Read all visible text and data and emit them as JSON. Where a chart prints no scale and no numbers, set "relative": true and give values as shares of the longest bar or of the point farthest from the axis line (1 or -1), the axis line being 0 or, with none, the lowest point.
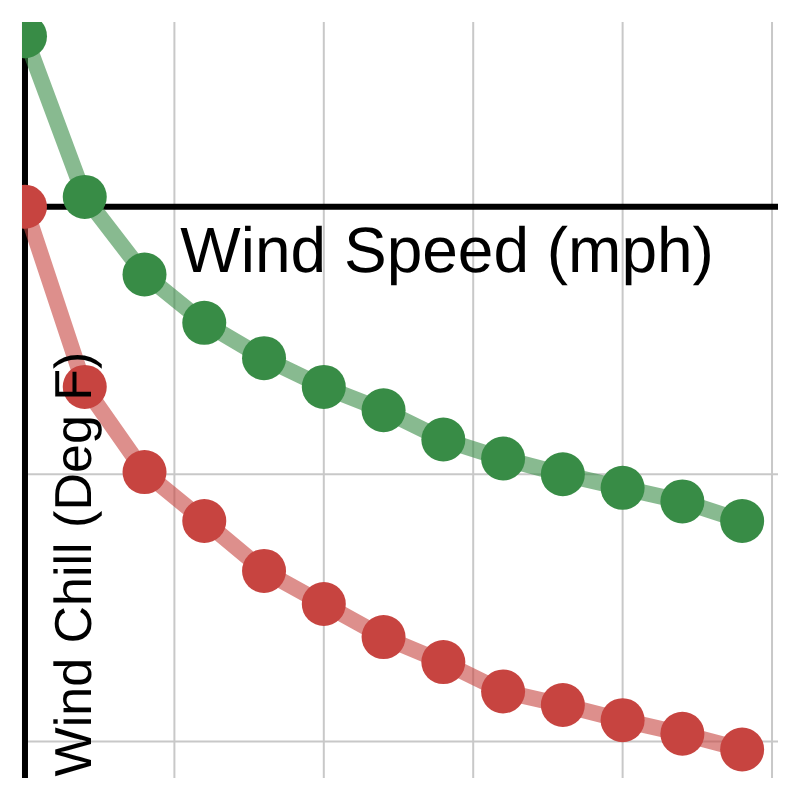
{
  "chart_data": {
    "type": "line",
    "relative": true,
    "xlabel": "Wind Speed (mph)",
    "ylabel": "Wind Chill (Deg F)",
    "categories": [
      null,
      null,
      null,
      null,
      null,
      null,
      null,
      null,
      null,
      null,
      null,
      null,
      null
    ],
    "grid": true,
    "legend": false,
    "marker": "circle",
    "line_style": "solid",
    "series": [
      {
        "color": "#388c46",
        "values": [
          0.314,
          0.018,
          -0.125,
          -0.214,
          -0.279,
          -0.332,
          -0.375,
          -0.429,
          -0.464,
          -0.493,
          -0.518,
          -0.543,
          -0.579
        ]
      },
      {
        "color": "#c74440",
        "values": [
          0,
          -0.332,
          -0.489,
          -0.579,
          -0.671,
          -0.732,
          -0.793,
          -0.839,
          -0.893,
          -0.918,
          -0.946,
          -0.971,
          -1
        ]
      }
    ]
  }
}
